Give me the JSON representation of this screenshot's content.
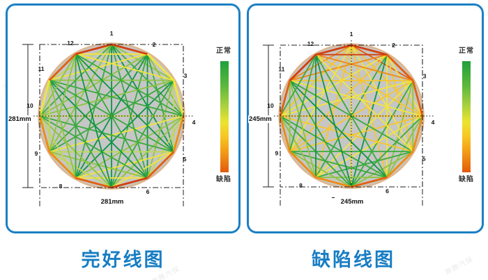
{
  "watermark": {
    "text": "奔腾汽保"
  },
  "palette": {
    "red": "#d23f10",
    "dorange": "#e35f0d",
    "orange": "#ef8b12",
    "gold": "#f6c62e",
    "yellow": "#f2e53c",
    "pgreen": "#bcd94e",
    "lgreen": "#8bc53f",
    "green": "#39aa3c",
    "dgreen": "#0f9447"
  },
  "colors": {
    "panel_border": "#1b80c4",
    "title": "#177dc3",
    "disc_fill": "#c6c6c6",
    "disc_rim": "#ddb68e",
    "legend_top_color": "#1fa03c",
    "legend_bottom_color": "#e25a0c"
  },
  "panels": [
    {
      "title": "完好线图",
      "legend": {
        "top_label": "正常",
        "bottom_label": "缺陷"
      },
      "dimension_left": "281mm",
      "dimension_bottom": "281mm",
      "chart_data": {
        "type": "network",
        "description": "acoustic tomography line map, 12 sensors on circle, intact specimen",
        "nodes": [
          "1",
          "2",
          "3",
          "4",
          "5",
          "6",
          "7",
          "8",
          "9",
          "10",
          "11",
          "12"
        ],
        "edges": [
          [
            1,
            2,
            "red"
          ],
          [
            1,
            3,
            "lgreen"
          ],
          [
            1,
            4,
            "green"
          ],
          [
            1,
            5,
            "dgreen"
          ],
          [
            1,
            6,
            "green"
          ],
          [
            1,
            7,
            "dgreen"
          ],
          [
            1,
            8,
            "green"
          ],
          [
            1,
            9,
            "lgreen"
          ],
          [
            1,
            10,
            "green"
          ],
          [
            1,
            11,
            "pgreen"
          ],
          [
            1,
            12,
            "red"
          ],
          [
            2,
            3,
            "yellow"
          ],
          [
            2,
            4,
            "lgreen"
          ],
          [
            2,
            5,
            "green"
          ],
          [
            2,
            6,
            "dgreen"
          ],
          [
            2,
            7,
            "green"
          ],
          [
            2,
            8,
            "dgreen"
          ],
          [
            2,
            9,
            "green"
          ],
          [
            2,
            10,
            "lgreen"
          ],
          [
            2,
            11,
            "yellow"
          ],
          [
            2,
            12,
            "yellow"
          ],
          [
            3,
            4,
            "yellow"
          ],
          [
            3,
            5,
            "pgreen"
          ],
          [
            3,
            6,
            "lgreen"
          ],
          [
            3,
            7,
            "green"
          ],
          [
            3,
            8,
            "dgreen"
          ],
          [
            3,
            9,
            "green"
          ],
          [
            3,
            10,
            "lgreen"
          ],
          [
            3,
            11,
            "lgreen"
          ],
          [
            3,
            12,
            "yellow"
          ],
          [
            4,
            5,
            "orange"
          ],
          [
            4,
            6,
            "pgreen"
          ],
          [
            4,
            7,
            "lgreen"
          ],
          [
            4,
            8,
            "lgreen"
          ],
          [
            4,
            9,
            "yellow"
          ],
          [
            4,
            10,
            "pgreen"
          ],
          [
            4,
            11,
            "green"
          ],
          [
            4,
            12,
            "green"
          ],
          [
            5,
            6,
            "dorange"
          ],
          [
            5,
            7,
            "yellow"
          ],
          [
            5,
            8,
            "yellow"
          ],
          [
            5,
            9,
            "pgreen"
          ],
          [
            5,
            10,
            "green"
          ],
          [
            5,
            11,
            "green"
          ],
          [
            5,
            12,
            "dgreen"
          ],
          [
            6,
            7,
            "red"
          ],
          [
            6,
            8,
            "yellow"
          ],
          [
            6,
            9,
            "lgreen"
          ],
          [
            6,
            10,
            "green"
          ],
          [
            6,
            11,
            "dgreen"
          ],
          [
            6,
            12,
            "green"
          ],
          [
            7,
            8,
            "dorange"
          ],
          [
            7,
            9,
            "pgreen"
          ],
          [
            7,
            10,
            "lgreen"
          ],
          [
            7,
            11,
            "green"
          ],
          [
            7,
            12,
            "dgreen"
          ],
          [
            8,
            9,
            "orange"
          ],
          [
            8,
            10,
            "pgreen"
          ],
          [
            8,
            11,
            "lgreen"
          ],
          [
            8,
            12,
            "green"
          ],
          [
            9,
            10,
            "orange"
          ],
          [
            9,
            11,
            "pgreen"
          ],
          [
            9,
            12,
            "lgreen"
          ],
          [
            10,
            11,
            "yellow"
          ],
          [
            10,
            12,
            "lgreen"
          ],
          [
            11,
            12,
            "dorange"
          ]
        ]
      }
    },
    {
      "title": "缺陷线图",
      "legend": {
        "top_label": "正常",
        "bottom_label": "缺陷"
      },
      "dimension_left": "245mm",
      "dimension_bottom": "245mm",
      "chart_data": {
        "type": "network",
        "description": "acoustic tomography line map, 12 sensors on circle, defect near top",
        "nodes": [
          "1",
          "2",
          "3",
          "4",
          "5",
          "6",
          "7",
          "8",
          "9",
          "10",
          "11",
          "12"
        ],
        "edges": [
          [
            1,
            2,
            "red"
          ],
          [
            1,
            3,
            "dorange"
          ],
          [
            1,
            4,
            "gold"
          ],
          [
            1,
            5,
            "yellow"
          ],
          [
            1,
            6,
            "gold"
          ],
          [
            1,
            7,
            "yellow"
          ],
          [
            1,
            8,
            "gold"
          ],
          [
            1,
            9,
            "yellow"
          ],
          [
            1,
            10,
            "gold"
          ],
          [
            1,
            11,
            "orange"
          ],
          [
            1,
            12,
            "red"
          ],
          [
            2,
            3,
            "dorange"
          ],
          [
            2,
            4,
            "yellow"
          ],
          [
            2,
            5,
            "gold"
          ],
          [
            2,
            6,
            "yellow"
          ],
          [
            2,
            7,
            "dgreen"
          ],
          [
            2,
            8,
            "green"
          ],
          [
            2,
            9,
            "gold"
          ],
          [
            2,
            10,
            "yellow"
          ],
          [
            2,
            11,
            "orange"
          ],
          [
            2,
            12,
            "red"
          ],
          [
            3,
            4,
            "dorange"
          ],
          [
            3,
            5,
            "lgreen"
          ],
          [
            3,
            6,
            "lgreen"
          ],
          [
            3,
            7,
            "green"
          ],
          [
            3,
            8,
            "yellow"
          ],
          [
            3,
            9,
            "gold"
          ],
          [
            3,
            10,
            "yellow"
          ],
          [
            3,
            11,
            "gold"
          ],
          [
            3,
            12,
            "orange"
          ],
          [
            4,
            5,
            "orange"
          ],
          [
            4,
            6,
            "lgreen"
          ],
          [
            4,
            7,
            "green"
          ],
          [
            4,
            8,
            "yellow"
          ],
          [
            4,
            9,
            "gold"
          ],
          [
            4,
            10,
            "gold"
          ],
          [
            4,
            11,
            "yellow"
          ],
          [
            4,
            12,
            "gold"
          ],
          [
            5,
            6,
            "orange"
          ],
          [
            5,
            7,
            "lgreen"
          ],
          [
            5,
            8,
            "green"
          ],
          [
            5,
            9,
            "green"
          ],
          [
            5,
            10,
            "gold"
          ],
          [
            5,
            11,
            "green"
          ],
          [
            5,
            12,
            "yellow"
          ],
          [
            6,
            7,
            "dorange"
          ],
          [
            6,
            8,
            "lgreen"
          ],
          [
            6,
            9,
            "green"
          ],
          [
            6,
            10,
            "green"
          ],
          [
            6,
            11,
            "dgreen"
          ],
          [
            6,
            12,
            "green"
          ],
          [
            7,
            8,
            "orange"
          ],
          [
            7,
            9,
            "lgreen"
          ],
          [
            7,
            10,
            "green"
          ],
          [
            7,
            11,
            "green"
          ],
          [
            7,
            12,
            "dgreen"
          ],
          [
            8,
            9,
            "orange"
          ],
          [
            8,
            10,
            "lgreen"
          ],
          [
            8,
            11,
            "lgreen"
          ],
          [
            8,
            12,
            "dgreen"
          ],
          [
            9,
            10,
            "orange"
          ],
          [
            9,
            11,
            "lgreen"
          ],
          [
            9,
            12,
            "green"
          ],
          [
            10,
            11,
            "dorange"
          ],
          [
            10,
            12,
            "green"
          ],
          [
            11,
            12,
            "red"
          ]
        ]
      }
    }
  ]
}
